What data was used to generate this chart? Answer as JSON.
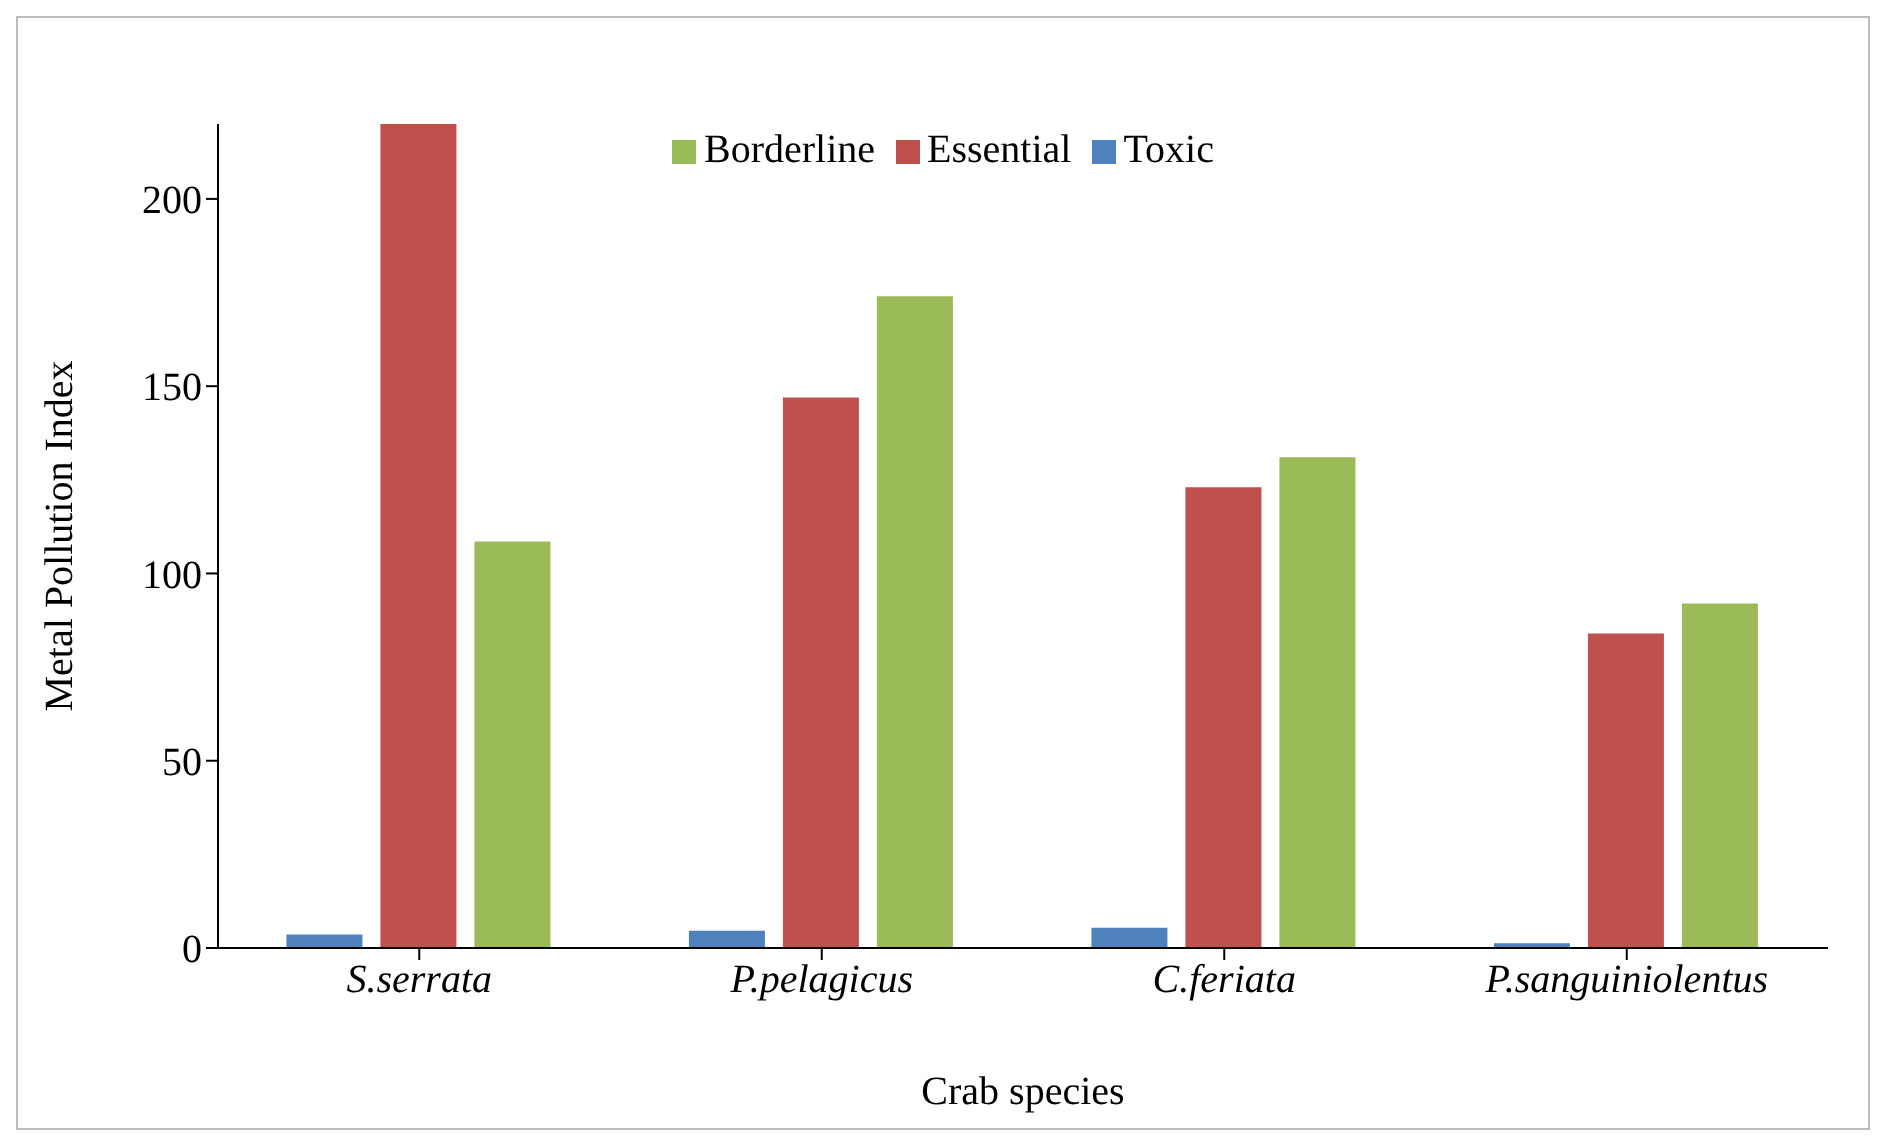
{
  "chart_data": {
    "type": "bar",
    "xlabel": "Crab species",
    "ylabel": "Metal Pollution Index",
    "categories": [
      "S.serrata",
      "P.pelagicus",
      "C.feriata",
      "P.sanguiniolentus"
    ],
    "series": [
      {
        "name": "Toxic",
        "color": "#4f81bd",
        "values": [
          3.6,
          4.6,
          5.4,
          1.3
        ]
      },
      {
        "name": "Essential",
        "color": "#c0504d",
        "values": [
          220,
          147,
          123,
          84
        ]
      },
      {
        "name": "Borderline",
        "color": "#9bbb59",
        "values": [
          108.5,
          174,
          131,
          92
        ]
      }
    ],
    "ylim": [
      0,
      220
    ],
    "yticks": [
      0,
      50,
      100,
      150,
      200
    ],
    "grid": false,
    "legend": "top"
  }
}
